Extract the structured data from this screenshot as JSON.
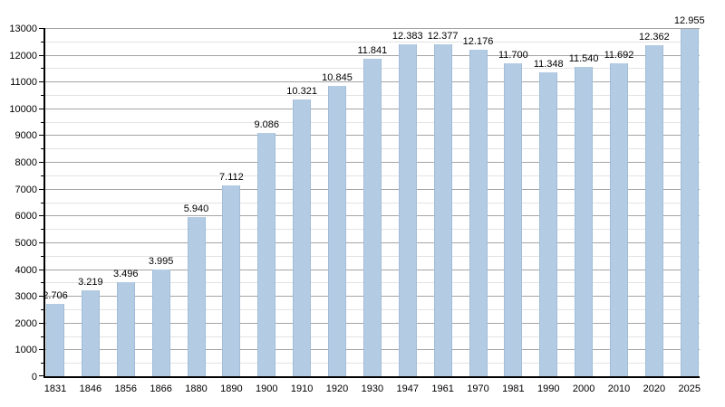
{
  "page": {
    "background_color": "#ffffff"
  },
  "chart_data": {
    "type": "bar",
    "title": "",
    "xlabel": "",
    "ylabel": "",
    "categories": [
      "1831",
      "1846",
      "1856",
      "1866",
      "1880",
      "1890",
      "1900",
      "1910",
      "1920",
      "1930",
      "1947",
      "1961",
      "1970",
      "1981",
      "1990",
      "2000",
      "2010",
      "2020",
      "2025"
    ],
    "values": [
      2706,
      3219,
      3496,
      3995,
      5940,
      7112,
      9086,
      10321,
      10845,
      11841,
      12383,
      12377,
      12176,
      11700,
      11348,
      11540,
      11692,
      12362,
      12955
    ],
    "value_labels": [
      "2.706",
      "3.219",
      "3.496",
      "3.995",
      "5.940",
      "7.112",
      "9.086",
      "10.321",
      "10.845",
      "11.841",
      "12.383",
      "12.377",
      "12.176",
      "11.700",
      "11.348",
      "11.540",
      "11.692",
      "12.362",
      "12.955"
    ],
    "ylim": [
      0,
      13000
    ],
    "y_major_step": 1000,
    "y_minor_step": 500,
    "y_tick_labels": [
      "0",
      "1000",
      "2000",
      "3000",
      "4000",
      "5000",
      "6000",
      "7000",
      "8000",
      "9000",
      "10000",
      "11000",
      "12000",
      "13000"
    ],
    "grid": "on",
    "legend": "none",
    "colors": {
      "bar_fill": "#b3cce4",
      "bar_edge": "#a2bdd8",
      "major_gridline": "#a5a5a5",
      "minor_gridline": "#e3e3e3",
      "axis": "#000000",
      "text": "#000000"
    }
  }
}
